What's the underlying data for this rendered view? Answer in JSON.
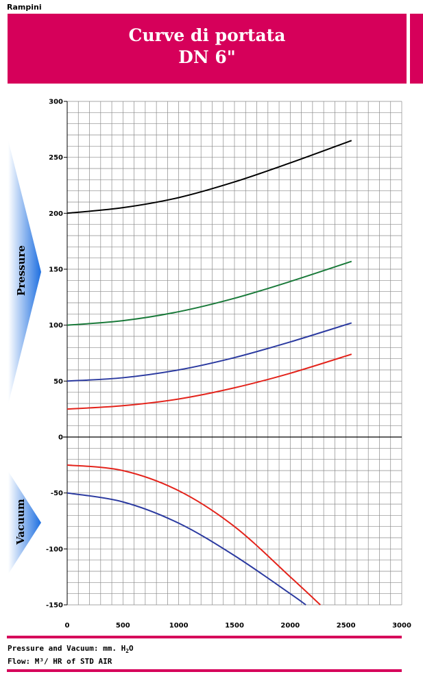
{
  "header": {
    "brand": "Rampini",
    "title_line1": "Curve di portata",
    "title_line2": "DN 6\""
  },
  "side_labels": {
    "pressure": "Pressure",
    "vacuum": "Vacuum"
  },
  "colors": {
    "banner": "#d6005a",
    "black_curve": "#000000",
    "green_curve": "#1a7a3a",
    "blue_curve": "#2b3aa0",
    "red_curve": "#e3231b",
    "arrow_blue": "#1e6fe0"
  },
  "footer": {
    "line1_prefix": "Pressure and Vacuum: mm. H",
    "line1_sub": "2",
    "line1_suffix": "O",
    "line2": "Flow: M³/ HR of STD AIR"
  },
  "chart_data": {
    "type": "line",
    "xlim": [
      0,
      3000
    ],
    "ylim": [
      -150,
      300
    ],
    "x_ticks": [
      0,
      500,
      1000,
      1500,
      2000,
      2500,
      3000
    ],
    "y_ticks": [
      300,
      250,
      200,
      150,
      100,
      50,
      0,
      -50,
      -100,
      -150
    ],
    "grid": true,
    "series": [
      {
        "color": "#000000",
        "x": [
          0,
          500,
          1000,
          1500,
          2000,
          2550
        ],
        "y": [
          200,
          205,
          214,
          228,
          245,
          265
        ]
      },
      {
        "color": "#1a7a3a",
        "x": [
          0,
          500,
          1000,
          1500,
          2000,
          2550
        ],
        "y": [
          100,
          104,
          112,
          124,
          139,
          157
        ]
      },
      {
        "color": "#2b3aa0",
        "x": [
          0,
          500,
          1000,
          1500,
          2000,
          2550
        ],
        "y": [
          50,
          53,
          60,
          71,
          85,
          102
        ]
      },
      {
        "color": "#e3231b",
        "x": [
          0,
          500,
          1000,
          1500,
          2000,
          2550
        ],
        "y": [
          25,
          28,
          34,
          44,
          57,
          74
        ]
      },
      {
        "color": "#e3231b",
        "x": [
          0,
          500,
          1000,
          1500,
          2000,
          2270
        ],
        "y": [
          -25,
          -30,
          -48,
          -80,
          -125,
          -150
        ]
      },
      {
        "color": "#2b3aa0",
        "x": [
          0,
          500,
          1000,
          1500,
          2000,
          2140
        ],
        "y": [
          -50,
          -58,
          -77,
          -106,
          -140,
          -150
        ]
      }
    ]
  }
}
